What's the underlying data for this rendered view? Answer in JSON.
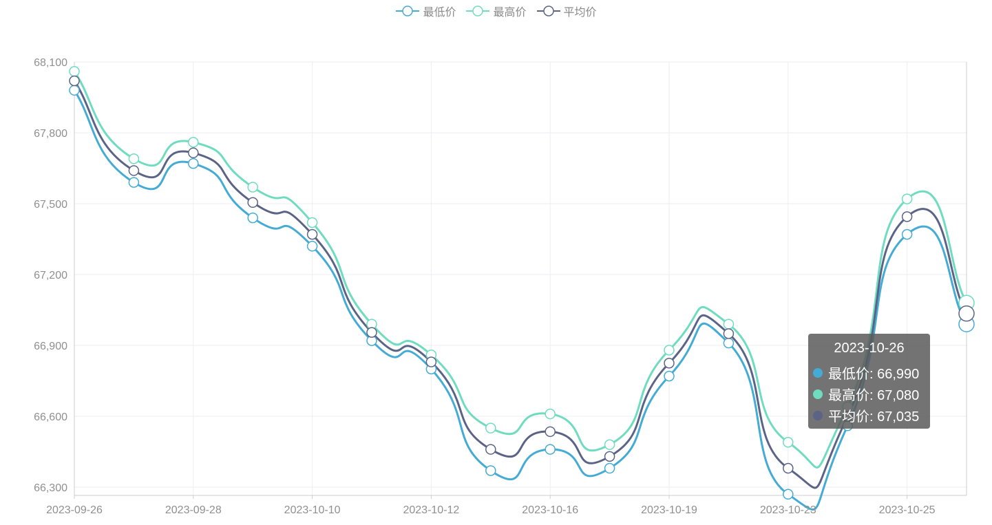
{
  "legend": [
    {
      "name": "最低价",
      "color": "#44abd5"
    },
    {
      "name": "最高价",
      "color": "#6fdcbf"
    },
    {
      "name": "平均价",
      "color": "#5b6486"
    }
  ],
  "tooltip": {
    "title": "2023-10-26",
    "rows": [
      {
        "label": "最低价: 66,990",
        "color": "#44abd5"
      },
      {
        "label": "最高价: 67,080",
        "color": "#6fdcbf"
      },
      {
        "label": "平均价: 67,035",
        "color": "#5b6486"
      }
    ]
  },
  "chart_data": {
    "type": "line",
    "x_tick_labels": [
      "2023-09-26",
      "2023-09-28",
      "2023-10-10",
      "2023-10-12",
      "2023-10-16",
      "2023-10-19",
      "2023-10-23",
      "2023-10-25"
    ],
    "y_ticks": [
      66300,
      66600,
      66900,
      67200,
      67500,
      67800,
      68100
    ],
    "y_tick_labels": [
      "66,300",
      "66,600",
      "66,900",
      "67,200",
      "67,500",
      "67,800",
      "68,100"
    ],
    "ylim": [
      66265,
      68100
    ],
    "grid": true,
    "legend_position": "top-center",
    "series": [
      {
        "name": "最低价",
        "color": "#44abd5",
        "values": [
          67980,
          67590,
          67670,
          67440,
          67320,
          66920,
          66800,
          66370,
          66460,
          66380,
          66770,
          66910,
          66270,
          66560,
          67370,
          66990
        ]
      },
      {
        "name": "最高价",
        "color": "#6fdcbf",
        "values": [
          68060,
          67690,
          67760,
          67570,
          67420,
          66990,
          66860,
          66550,
          66610,
          66480,
          66880,
          66990,
          66490,
          66640,
          67520,
          67080
        ]
      },
      {
        "name": "平均价",
        "color": "#5b6486",
        "values": [
          68020,
          67640,
          67715,
          67505,
          67370,
          66955,
          66830,
          66460,
          66535,
          66430,
          66825,
          66950,
          66380,
          66600,
          67445,
          67035
        ]
      }
    ]
  }
}
